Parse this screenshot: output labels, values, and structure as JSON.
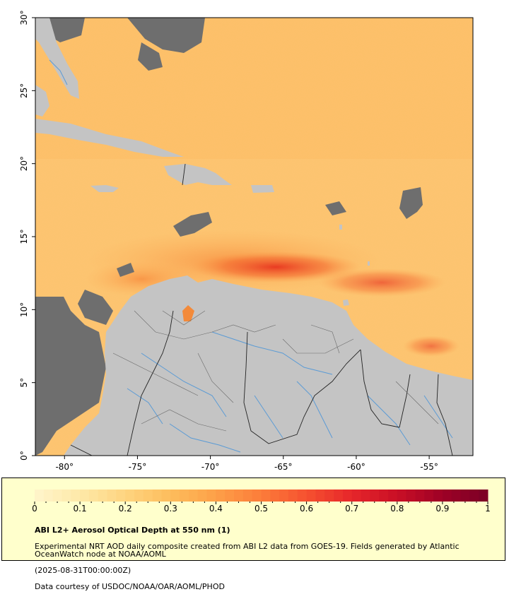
{
  "map": {
    "lat_labels": [
      "0°",
      "5°",
      "10°",
      "15°",
      "20°",
      "25°",
      "30°"
    ],
    "lon_labels": [
      "-80°",
      "-75°",
      "-70°",
      "-65°",
      "-60°",
      "-55°"
    ],
    "lat_range": [
      0,
      30
    ],
    "lon_range": [
      -82,
      -52
    ],
    "colors": {
      "background": "#fcc46e",
      "land": "#c4c4c4",
      "missing": "#6e6e6e",
      "rivers": "#5b9bd5",
      "borders": "#222222"
    }
  },
  "colorbar": {
    "ticks": [
      "0",
      "0.1",
      "0.2",
      "0.3",
      "0.4",
      "0.5",
      "0.6",
      "0.7",
      "0.8",
      "0.9",
      "1"
    ],
    "range": [
      0,
      1
    ],
    "stops": [
      "#fff5cc",
      "#fee9a8",
      "#fed480",
      "#fdbd5c",
      "#fda048",
      "#fc7c3a",
      "#f55130",
      "#e6262a",
      "#c90f26",
      "#9e0126",
      "#7a0026"
    ]
  },
  "caption": {
    "title": "ABI L2+ Aerosol Optical Depth at 550 nm (1)",
    "line1": "Experimental NRT AOD daily composite created from ABI L2 data from GOES-19. Fields generated by Atlantic OceanWatch node at NOAA/AOML",
    "line2": "(2025-08-31T00:00:00Z)",
    "line3": "Data courtesy of USDOC/NOAA/OAR/AOML/PHOD"
  }
}
